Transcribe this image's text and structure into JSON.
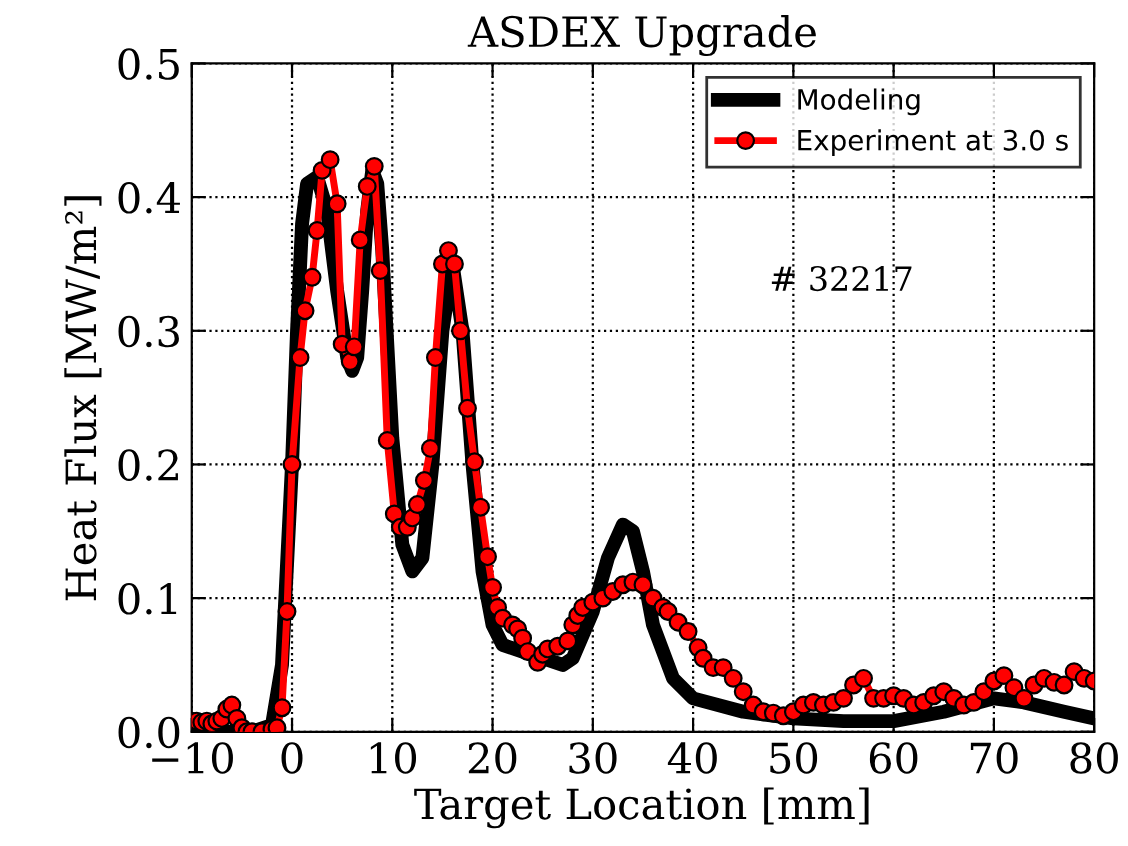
{
  "chart_data": {
    "type": "line",
    "title": "ASDEX Upgrade",
    "xlabel": "Target Location [mm]",
    "ylabel": "Heat Flux [MW/m²]",
    "xlim": [
      -10,
      80
    ],
    "ylim": [
      0,
      0.5
    ],
    "xticks": [
      {
        "value": -10,
        "label": "−10"
      },
      0,
      10,
      20,
      30,
      40,
      50,
      60,
      70,
      80
    ],
    "yticks": [
      {
        "value": 0,
        "label": "0.0"
      },
      0.1,
      0.2,
      0.3,
      0.4,
      0.5
    ],
    "grid": true,
    "legend": "top right",
    "annotations": [
      "# 32217"
    ],
    "series": [
      {
        "name": "Modeling",
        "color": "#000000",
        "marker": "none",
        "x": [
          -10,
          -4,
          -2,
          -1,
          0,
          0.5,
          1,
          1.5,
          2.5,
          3.5,
          4.5,
          5.5,
          6,
          6.5,
          7,
          7.5,
          8,
          8.5,
          9,
          10,
          11,
          12,
          13,
          14,
          15,
          16,
          17,
          18,
          19,
          20,
          21,
          23,
          25,
          27,
          28,
          30,
          31.5,
          33,
          34,
          35,
          36,
          38,
          40,
          45,
          50,
          55,
          60,
          65,
          70,
          73,
          77,
          80
        ],
        "values": [
          0,
          0,
          0.005,
          0.05,
          0.2,
          0.3,
          0.38,
          0.41,
          0.415,
          0.39,
          0.33,
          0.28,
          0.27,
          0.28,
          0.33,
          0.39,
          0.42,
          0.41,
          0.36,
          0.22,
          0.14,
          0.12,
          0.13,
          0.2,
          0.3,
          0.35,
          0.3,
          0.2,
          0.12,
          0.08,
          0.065,
          0.06,
          0.055,
          0.05,
          0.055,
          0.09,
          0.13,
          0.155,
          0.15,
          0.12,
          0.08,
          0.04,
          0.025,
          0.015,
          0.01,
          0.008,
          0.008,
          0.015,
          0.025,
          0.022,
          0.015,
          0.01
        ]
      },
      {
        "name": "Experiment at 3.0 s",
        "color": "#ff0000",
        "marker": "circle",
        "x": [
          -10,
          -9.5,
          -9,
          -8.5,
          -8,
          -7.5,
          -7,
          -6.5,
          -6,
          -5.5,
          -5,
          -4.5,
          -4,
          -3,
          -2,
          -1.5,
          -1,
          -0.5,
          0,
          0.8,
          1.3,
          2,
          2.5,
          3,
          3.8,
          4.5,
          5,
          5.8,
          6.2,
          6.8,
          7.5,
          8.2,
          8.8,
          9.5,
          10.2,
          10.8,
          11.5,
          12,
          12.5,
          13.2,
          13.8,
          14.3,
          15,
          15.6,
          16.2,
          16.8,
          17.5,
          18.2,
          18.8,
          19.5,
          20,
          20.5,
          21,
          22,
          22.5,
          23,
          23.5,
          24.5,
          25,
          25.5,
          26.5,
          27.5,
          28,
          28.5,
          29,
          30,
          31,
          32,
          33,
          34,
          35,
          36,
          37,
          37.5,
          38.5,
          39.5,
          40.5,
          41,
          42,
          43,
          44,
          45,
          46,
          47,
          48,
          49,
          50,
          51,
          52,
          53,
          54,
          55,
          56,
          57,
          58,
          59,
          60,
          61,
          62,
          63,
          64,
          65,
          66,
          67,
          68,
          69,
          70,
          71,
          72,
          73,
          74,
          75,
          76,
          77,
          78,
          79,
          80
        ],
        "values": [
          0.008,
          0.008,
          0.007,
          0.008,
          0.006,
          0.008,
          0.01,
          0.017,
          0.02,
          0.01,
          0.003,
          0,
          0,
          0,
          0.002,
          0.003,
          0.018,
          0.09,
          0.2,
          0.28,
          0.315,
          0.34,
          0.375,
          0.42,
          0.428,
          0.395,
          0.29,
          0.277,
          0.288,
          0.368,
          0.408,
          0.423,
          0.345,
          0.218,
          0.163,
          0.153,
          0.153,
          0.16,
          0.17,
          0.188,
          0.212,
          0.28,
          0.35,
          0.36,
          0.35,
          0.3,
          0.242,
          0.202,
          0.168,
          0.131,
          0.108,
          0.093,
          0.085,
          0.08,
          0.077,
          0.07,
          0.06,
          0.052,
          0.058,
          0.062,
          0.064,
          0.068,
          0.08,
          0.087,
          0.093,
          0.097,
          0.1,
          0.105,
          0.11,
          0.112,
          0.11,
          0.1,
          0.093,
          0.09,
          0.082,
          0.075,
          0.063,
          0.055,
          0.048,
          0.048,
          0.04,
          0.03,
          0.02,
          0.015,
          0.014,
          0.012,
          0.015,
          0.02,
          0.022,
          0.02,
          0.022,
          0.025,
          0.035,
          0.04,
          0.025,
          0.025,
          0.027,
          0.025,
          0.02,
          0.022,
          0.027,
          0.03,
          0.025,
          0.02,
          0.022,
          0.03,
          0.038,
          0.042,
          0.033,
          0.025,
          0.035,
          0.04,
          0.037,
          0.035,
          0.045,
          0.04,
          0.038
        ]
      }
    ]
  }
}
